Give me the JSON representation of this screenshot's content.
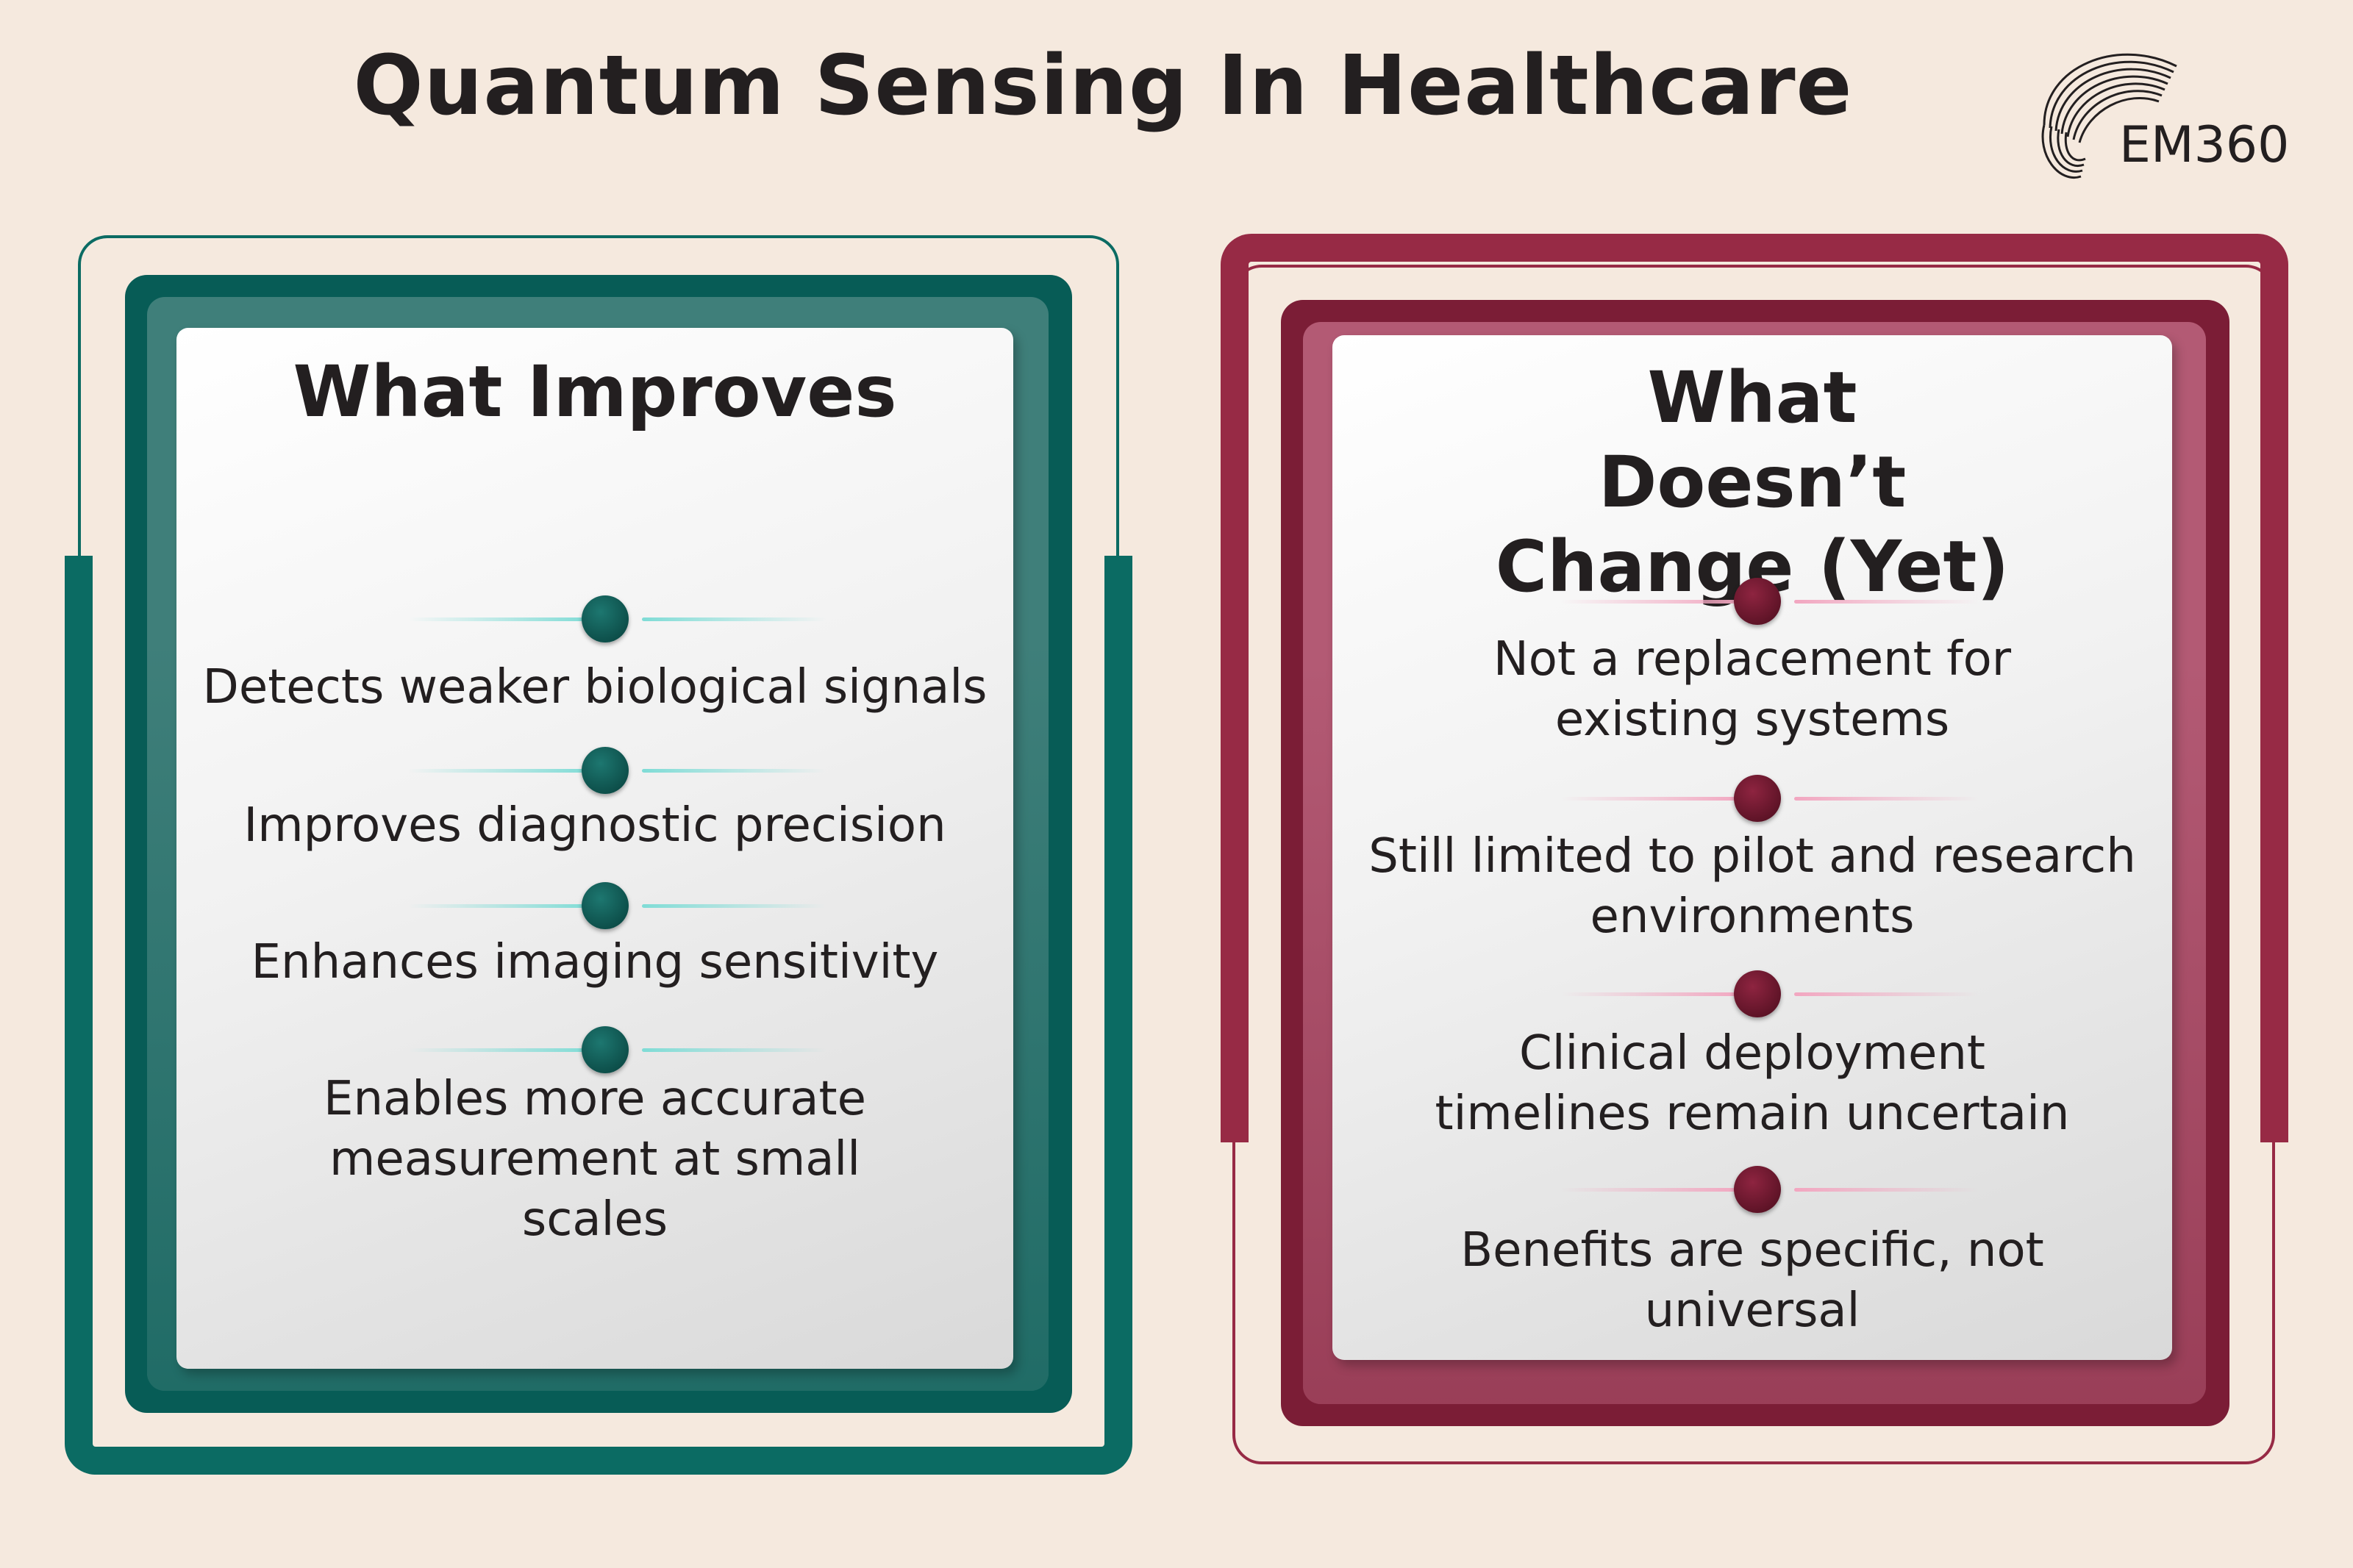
{
  "header": {
    "title": "Quantum Sensing In Healthcare",
    "logo_text": "EM360"
  },
  "colors": {
    "background": "#f5e9de",
    "teal": "#0b6b63",
    "crimson": "#972a45"
  },
  "left_panel": {
    "heading": "What Improves",
    "items": [
      "Detects weaker biological signals",
      "Improves diagnostic precision",
      "Enhances imaging sensitivity",
      "Enables more accurate measurement at small scales"
    ]
  },
  "right_panel": {
    "heading": "What Doesn’t Change (Yet)",
    "items": [
      "Not a replacement for existing systems",
      "Still limited to pilot and research environments",
      "Clinical deployment timelines remain uncertain",
      "Benefits are specific, not universal"
    ]
  }
}
